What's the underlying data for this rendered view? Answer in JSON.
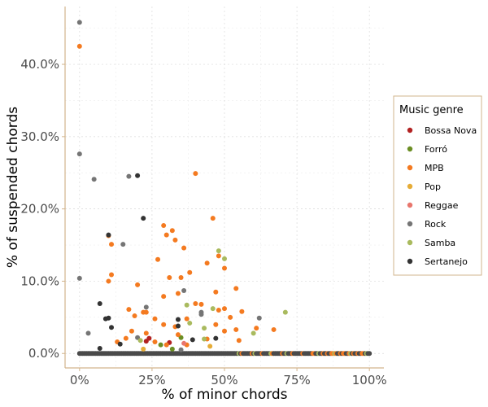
{
  "chart_data": {
    "type": "scatter",
    "xlabel": "% of minor chords",
    "ylabel": "% of suspended chords",
    "xlim": [
      -0.05,
      1.05
    ],
    "ylim": [
      -0.02,
      0.48
    ],
    "x_ticks": [
      0,
      0.25,
      0.5,
      0.75,
      1.0
    ],
    "x_tick_labels": [
      "0%",
      "25%",
      "50%",
      "75%",
      "100%"
    ],
    "y_ticks": [
      0,
      0.1,
      0.2,
      0.3,
      0.4
    ],
    "y_tick_labels": [
      "0.0%",
      "10.0%",
      "20.0%",
      "30.0%",
      "40.0%"
    ],
    "grid": "dotted",
    "legend": {
      "title": "Music genre",
      "position": "right"
    },
    "series": [
      {
        "name": "Bossa Nova",
        "color": "#b22222",
        "points": [
          [
            0.24,
            0.021
          ],
          [
            0.31,
            0.015
          ],
          [
            0.23,
            0.017
          ]
        ]
      },
      {
        "name": "Forró",
        "color": "#6b8e23",
        "points": [
          [
            0.28,
            0.012
          ],
          [
            0.35,
            0.022
          ],
          [
            0.32,
            0.006
          ]
        ]
      },
      {
        "name": "MPB",
        "color": "#f47a20",
        "points": [
          [
            0.0,
            0.425
          ],
          [
            0.4,
            0.249
          ],
          [
            0.46,
            0.187
          ],
          [
            0.29,
            0.177
          ],
          [
            0.32,
            0.17
          ],
          [
            0.3,
            0.164
          ],
          [
            0.33,
            0.157
          ],
          [
            0.36,
            0.146
          ],
          [
            0.1,
            0.163
          ],
          [
            0.11,
            0.151
          ],
          [
            0.27,
            0.13
          ],
          [
            0.38,
            0.112
          ],
          [
            0.31,
            0.105
          ],
          [
            0.35,
            0.105
          ],
          [
            0.48,
            0.135
          ],
          [
            0.44,
            0.125
          ],
          [
            0.5,
            0.118
          ],
          [
            0.11,
            0.109
          ],
          [
            0.1,
            0.1
          ],
          [
            0.2,
            0.095
          ],
          [
            0.54,
            0.09
          ],
          [
            0.4,
            0.069
          ],
          [
            0.42,
            0.068
          ],
          [
            0.47,
            0.085
          ],
          [
            0.34,
            0.083
          ],
          [
            0.29,
            0.079
          ],
          [
            0.23,
            0.057
          ],
          [
            0.22,
            0.057
          ],
          [
            0.17,
            0.061
          ],
          [
            0.19,
            0.052
          ],
          [
            0.26,
            0.048
          ],
          [
            0.37,
            0.048
          ],
          [
            0.48,
            0.06
          ],
          [
            0.5,
            0.062
          ],
          [
            0.56,
            0.058
          ],
          [
            0.52,
            0.05
          ],
          [
            0.29,
            0.04
          ],
          [
            0.33,
            0.037
          ],
          [
            0.47,
            0.04
          ],
          [
            0.18,
            0.031
          ],
          [
            0.23,
            0.028
          ],
          [
            0.34,
            0.026
          ],
          [
            0.5,
            0.031
          ],
          [
            0.54,
            0.033
          ],
          [
            0.61,
            0.035
          ],
          [
            0.67,
            0.033
          ],
          [
            0.16,
            0.021
          ],
          [
            0.13,
            0.016
          ],
          [
            0.26,
            0.016
          ],
          [
            0.37,
            0.012
          ],
          [
            0.55,
            0.018
          ],
          [
            0.3,
            0.012
          ],
          [
            0.44,
            0.02
          ]
        ]
      },
      {
        "name": "Pop",
        "color": "#e6ac37",
        "points": [
          [
            0.45,
            0.01
          ],
          [
            0.22,
            0.006
          ]
        ]
      },
      {
        "name": "Reggae",
        "color": "#e8766d",
        "points": [
          [
            0.36,
            0.014
          ]
        ]
      },
      {
        "name": "Rock",
        "color": "#757575",
        "points": [
          [
            0.0,
            0.458
          ],
          [
            0.0,
            0.276
          ],
          [
            0.05,
            0.241
          ],
          [
            0.17,
            0.245
          ],
          [
            0.15,
            0.151
          ],
          [
            0.0,
            0.104
          ],
          [
            0.36,
            0.087
          ],
          [
            0.23,
            0.064
          ],
          [
            0.42,
            0.057
          ],
          [
            0.42,
            0.054
          ],
          [
            0.62,
            0.049
          ],
          [
            0.03,
            0.028
          ],
          [
            0.2,
            0.022
          ],
          [
            0.35,
            0.005
          ]
        ]
      },
      {
        "name": "Samba",
        "color": "#a9ba5e",
        "points": [
          [
            0.48,
            0.142
          ],
          [
            0.5,
            0.131
          ],
          [
            0.37,
            0.067
          ],
          [
            0.46,
            0.062
          ],
          [
            0.71,
            0.057
          ],
          [
            0.38,
            0.042
          ],
          [
            0.43,
            0.035
          ],
          [
            0.6,
            0.028
          ],
          [
            0.43,
            0.02
          ],
          [
            0.21,
            0.018
          ]
        ]
      },
      {
        "name": "Sertanejo",
        "color": "#333333",
        "points": [
          [
            0.2,
            0.246
          ],
          [
            0.22,
            0.187
          ],
          [
            0.1,
            0.164
          ],
          [
            0.07,
            0.069
          ],
          [
            0.1,
            0.049
          ],
          [
            0.34,
            0.047
          ],
          [
            0.09,
            0.048
          ],
          [
            0.34,
            0.038
          ],
          [
            0.11,
            0.036
          ],
          [
            0.47,
            0.021
          ],
          [
            0.39,
            0.019
          ],
          [
            0.14,
            0.013
          ],
          [
            0.07,
            0.007
          ]
        ]
      }
    ],
    "baseline_points": {
      "y": 0,
      "x_min": 0,
      "x_max": 1,
      "note_color_dark": "#4a4a4a",
      "note_color_mpb": "#f47a20",
      "note_color_samba": "#a9ba5e"
    }
  }
}
